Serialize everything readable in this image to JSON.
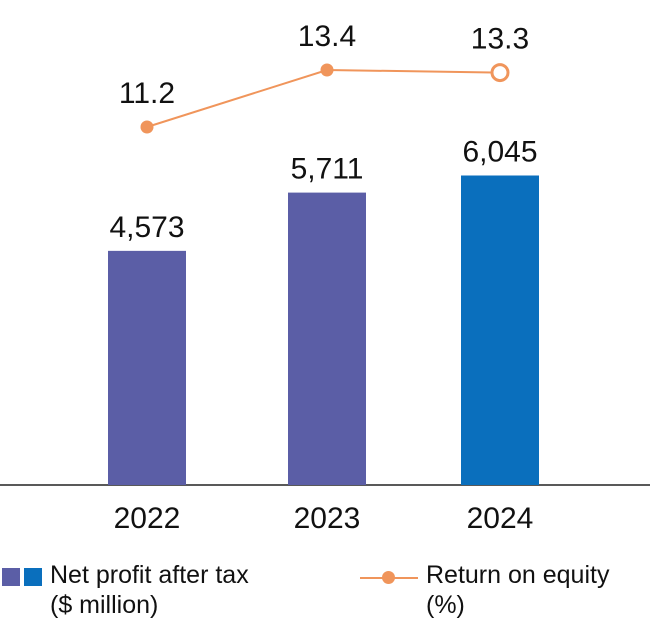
{
  "chart_data": {
    "type": "bar+line",
    "categories": [
      "2022",
      "2023",
      "2024"
    ],
    "series": [
      {
        "name": "Net profit after tax ($ million)",
        "type": "bar",
        "values": [
          4573,
          5711,
          6045
        ],
        "labels": [
          "4,573",
          "5,711",
          "6,045"
        ],
        "colors": [
          "#5b5ea6",
          "#5b5ea6",
          "#0a6fbd"
        ]
      },
      {
        "name": "Return on equity (%)",
        "type": "line",
        "values": [
          11.2,
          13.4,
          13.3
        ],
        "labels": [
          "11.2",
          "13.4",
          "13.3"
        ],
        "color": "#f0955b",
        "last_point_style": "hollow"
      }
    ],
    "grid": false,
    "legend_position": "bottom"
  },
  "legend": {
    "bars": {
      "line1": "Net profit after tax",
      "line2": "($ million)",
      "colors": [
        "#5b5ea6",
        "#0a6fbd"
      ]
    },
    "line": {
      "line1": "Return on equity",
      "line2": "(%)",
      "color": "#f0955b"
    }
  }
}
